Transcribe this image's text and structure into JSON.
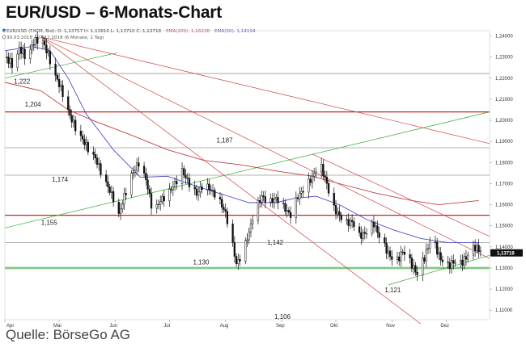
{
  "page": {
    "title": "EUR/USD – 6-Monats-Chart",
    "source": "Quelle: BörseGo AG"
  },
  "chart_data": {
    "type": "candlestick",
    "header": {
      "line1_prefix": "EUR/USD (FXCM, Bid): O: 1,13757  H: 1,13816  L: 1,13710  C: 1,13718",
      "ema200": "EMA(200): 1,16238",
      "ema50": "EMA(50): 1,14194",
      "line2": "30.03.2018 - 07.12.2018  (6 Monate, 1 Tag)"
    },
    "y_ticks": [
      "1,24000",
      "1,23000",
      "1,22000",
      "1,21000",
      "1,20000",
      "1,19000",
      "1,18000",
      "1,17000",
      "1,16000",
      "1,15000",
      "1,14000",
      "1,13000",
      "1,12000",
      "1,11000"
    ],
    "y_tick_values": [
      1.24,
      1.23,
      1.22,
      1.21,
      1.2,
      1.19,
      1.18,
      1.17,
      1.16,
      1.15,
      1.14,
      1.13,
      1.12,
      1.11
    ],
    "ylim": [
      1.1055,
      1.2425
    ],
    "x_ticks": [
      "Apr",
      "Mai",
      "Jun",
      "Jul",
      "Aug",
      "Sep",
      "Okt",
      "Nov",
      "Dez"
    ],
    "x_tick_days": [
      0,
      30,
      61,
      91,
      122,
      153,
      183,
      214,
      244
    ],
    "xlim_days": [
      0,
      268
    ],
    "last_price": "1,13718",
    "last_price_value": 1.13718,
    "horizontal_lines": [
      {
        "value": 1.2222,
        "color": "#9a9a9a"
      },
      {
        "value": 1.204,
        "color": "#cc2222"
      },
      {
        "value": 1.187,
        "color": "#9a9a9a"
      },
      {
        "value": 1.174,
        "color": "#9a9a9a"
      },
      {
        "value": 1.155,
        "color": "#cc2222"
      },
      {
        "value": 1.142,
        "color": "#9a9a9a"
      },
      {
        "value": 1.13,
        "color": "#44aa44"
      }
    ],
    "trend_lines": [
      {
        "color": "#cc4444",
        "from": [
          20,
          1.2395
        ],
        "to": [
          268,
          1.189
        ]
      },
      {
        "color": "#cc4444",
        "from": [
          20,
          1.2395
        ],
        "to": [
          268,
          1.1345
        ]
      },
      {
        "color": "#cc4444",
        "from": [
          20,
          1.2395
        ],
        "to": [
          230,
          1.1035
        ]
      },
      {
        "color": "#cc4444",
        "from": [
          170,
          1.184
        ],
        "to": [
          268,
          1.145
        ]
      },
      {
        "color": "#33aa33",
        "from": [
          0,
          1.149
        ],
        "to": [
          268,
          1.204
        ]
      },
      {
        "color": "#33aa33",
        "from": [
          0,
          1.22
        ],
        "to": [
          62,
          1.232
        ]
      },
      {
        "color": "#33aa33",
        "from": [
          212,
          1.122
        ],
        "to": [
          268,
          1.136
        ]
      }
    ],
    "annotations": [
      {
        "text": "1,222",
        "x": 5,
        "y": 1.2175
      },
      {
        "text": "1,204",
        "x": 11,
        "y": 1.2065
      },
      {
        "text": "1,187",
        "x": 117,
        "y": 1.1895
      },
      {
        "text": "1,174",
        "x": 26,
        "y": 1.171
      },
      {
        "text": "1,155",
        "x": 20,
        "y": 1.1505
      },
      {
        "text": "1,142",
        "x": 145,
        "y": 1.141
      },
      {
        "text": "1,130",
        "x": 104,
        "y": 1.1318
      },
      {
        "text": "1,121",
        "x": 210,
        "y": 1.1185
      },
      {
        "text": "1,106",
        "x": 149,
        "y": 1.1058
      }
    ],
    "ema200": {
      "name": "EMA(200)",
      "color": "#c24040",
      "points": [
        [
          0,
          1.218
        ],
        [
          20,
          1.214
        ],
        [
          35,
          1.205
        ],
        [
          50,
          1.1995
        ],
        [
          70,
          1.193
        ],
        [
          90,
          1.186
        ],
        [
          110,
          1.181
        ],
        [
          130,
          1.179
        ],
        [
          150,
          1.176
        ],
        [
          170,
          1.1735
        ],
        [
          185,
          1.17
        ],
        [
          205,
          1.1655
        ],
        [
          225,
          1.162
        ],
        [
          240,
          1.16
        ],
        [
          262,
          1.162
        ]
      ]
    },
    "ema50": {
      "name": "EMA(50)",
      "color": "#4a4ac8",
      "points": [
        [
          0,
          1.233
        ],
        [
          15,
          1.235
        ],
        [
          25,
          1.233
        ],
        [
          35,
          1.22
        ],
        [
          45,
          1.203
        ],
        [
          60,
          1.186
        ],
        [
          75,
          1.173
        ],
        [
          90,
          1.1735
        ],
        [
          105,
          1.169
        ],
        [
          120,
          1.165
        ],
        [
          135,
          1.161
        ],
        [
          150,
          1.161
        ],
        [
          160,
          1.163
        ],
        [
          172,
          1.164
        ],
        [
          185,
          1.16
        ],
        [
          200,
          1.153
        ],
        [
          215,
          1.148
        ],
        [
          230,
          1.144
        ],
        [
          245,
          1.142
        ],
        [
          262,
          1.142
        ]
      ]
    },
    "price_points": [
      [
        0,
        1.23
      ],
      [
        5,
        1.226
      ],
      [
        8,
        1.234
      ],
      [
        12,
        1.23
      ],
      [
        16,
        1.237
      ],
      [
        20,
        1.2395
      ],
      [
        24,
        1.231
      ],
      [
        28,
        1.221
      ],
      [
        32,
        1.213
      ],
      [
        36,
        1.202
      ],
      [
        40,
        1.195
      ],
      [
        45,
        1.188
      ],
      [
        50,
        1.182
      ],
      [
        55,
        1.172
      ],
      [
        60,
        1.163
      ],
      [
        63,
        1.155
      ],
      [
        66,
        1.164
      ],
      [
        70,
        1.174
      ],
      [
        74,
        1.18
      ],
      [
        78,
        1.172
      ],
      [
        82,
        1.156
      ],
      [
        86,
        1.162
      ],
      [
        90,
        1.165
      ],
      [
        94,
        1.17
      ],
      [
        98,
        1.176
      ],
      [
        102,
        1.17
      ],
      [
        106,
        1.165
      ],
      [
        110,
        1.17
      ],
      [
        114,
        1.167
      ],
      [
        118,
        1.163
      ],
      [
        122,
        1.156
      ],
      [
        125,
        1.145
      ],
      [
        128,
        1.132
      ],
      [
        131,
        1.136
      ],
      [
        135,
        1.147
      ],
      [
        138,
        1.157
      ],
      [
        142,
        1.164
      ],
      [
        146,
        1.161
      ],
      [
        150,
        1.163
      ],
      [
        154,
        1.159
      ],
      [
        158,
        1.155
      ],
      [
        162,
        1.164
      ],
      [
        166,
        1.168
      ],
      [
        170,
        1.173
      ],
      [
        174,
        1.18
      ],
      [
        178,
        1.17
      ],
      [
        181,
        1.159
      ],
      [
        185,
        1.155
      ],
      [
        188,
        1.151
      ],
      [
        192,
        1.152
      ],
      [
        196,
        1.145
      ],
      [
        200,
        1.147
      ],
      [
        204,
        1.151
      ],
      [
        208,
        1.143
      ],
      [
        212,
        1.137
      ],
      [
        216,
        1.132
      ],
      [
        220,
        1.138
      ],
      [
        224,
        1.133
      ],
      [
        228,
        1.127
      ],
      [
        232,
        1.135
      ],
      [
        236,
        1.145
      ],
      [
        240,
        1.136
      ],
      [
        244,
        1.13
      ],
      [
        248,
        1.133
      ],
      [
        252,
        1.132
      ],
      [
        256,
        1.136
      ],
      [
        260,
        1.14
      ],
      [
        264,
        1.1372
      ]
    ]
  }
}
